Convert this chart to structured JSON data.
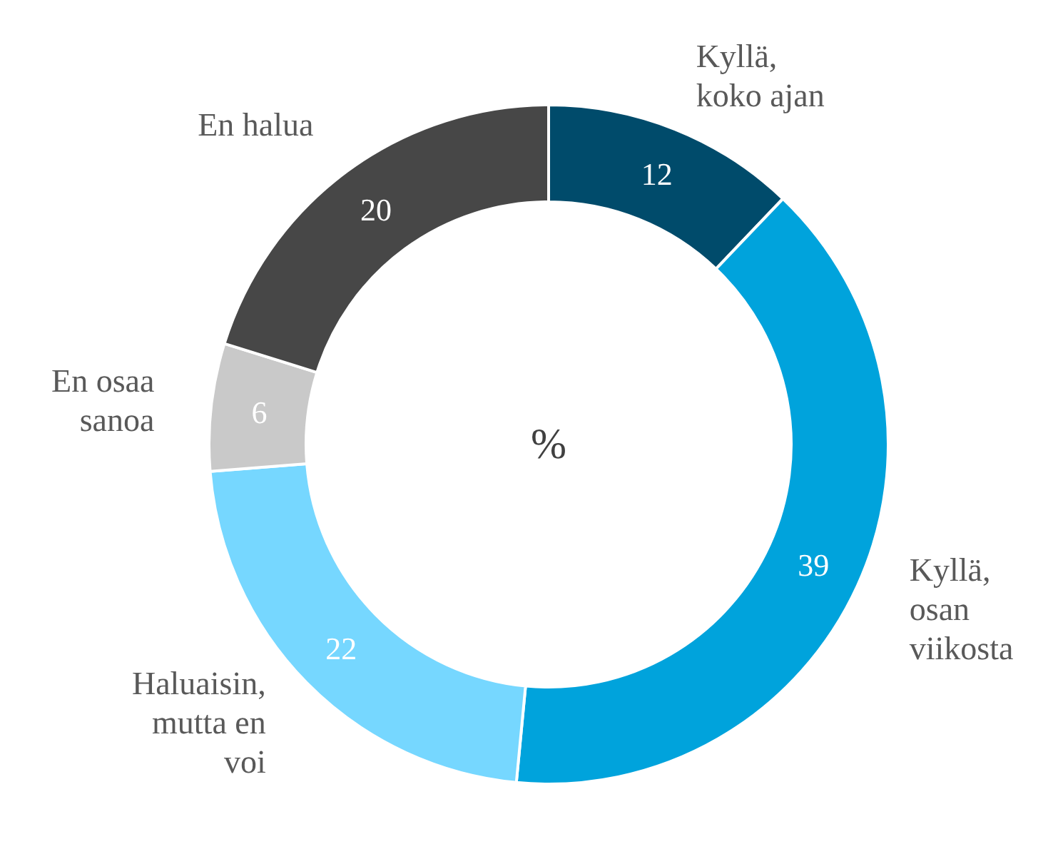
{
  "chart_data": {
    "type": "donut",
    "categories": [
      "Kyllä, koko ajan",
      "Kyllä, osan viikosta",
      "Haluaisin, mutta en voi",
      "En osaa sanoa",
      "En halua"
    ],
    "values": [
      12,
      39,
      22,
      6,
      20
    ],
    "colors": [
      "#004b6b",
      "#00a3dc",
      "#76d7ff",
      "#c9c9c9",
      "#474747"
    ],
    "data_labels": true,
    "annotations": [
      "%"
    ]
  }
}
